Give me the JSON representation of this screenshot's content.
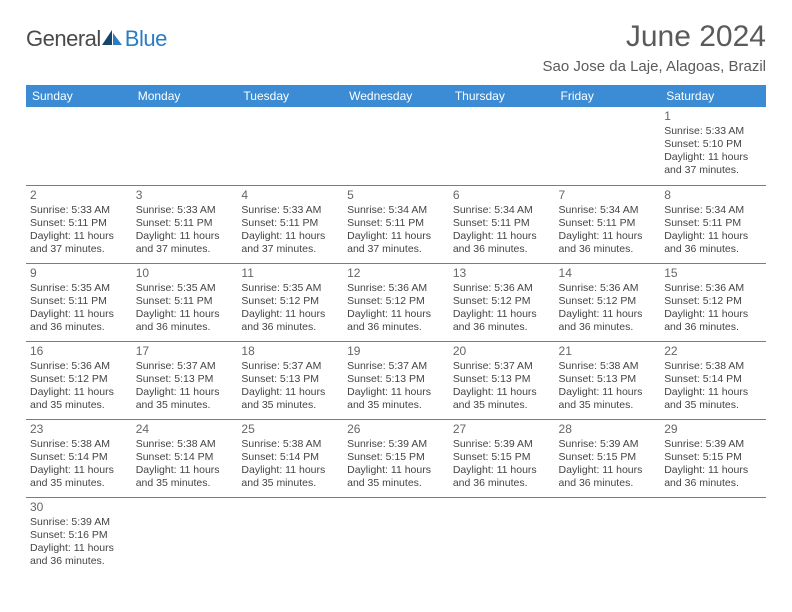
{
  "logo": {
    "part1": "General",
    "part2": "Blue"
  },
  "title": "June 2024",
  "location": "Sao Jose da Laje, Alagoas, Brazil",
  "colors": {
    "header_bg": "#3b8cd4",
    "header_text": "#ffffff",
    "rule": "#3b8cd4",
    "title_text": "#5a5a5a",
    "logo_blue": "#2b7cc4",
    "logo_gray": "#4a4a4a"
  },
  "day_headers": [
    "Sunday",
    "Monday",
    "Tuesday",
    "Wednesday",
    "Thursday",
    "Friday",
    "Saturday"
  ],
  "weeks": [
    [
      null,
      null,
      null,
      null,
      null,
      null,
      {
        "n": "1",
        "sr": "5:33 AM",
        "ss": "5:10 PM",
        "dl": "11 hours and 37 minutes."
      }
    ],
    [
      {
        "n": "2",
        "sr": "5:33 AM",
        "ss": "5:11 PM",
        "dl": "11 hours and 37 minutes."
      },
      {
        "n": "3",
        "sr": "5:33 AM",
        "ss": "5:11 PM",
        "dl": "11 hours and 37 minutes."
      },
      {
        "n": "4",
        "sr": "5:33 AM",
        "ss": "5:11 PM",
        "dl": "11 hours and 37 minutes."
      },
      {
        "n": "5",
        "sr": "5:34 AM",
        "ss": "5:11 PM",
        "dl": "11 hours and 37 minutes."
      },
      {
        "n": "6",
        "sr": "5:34 AM",
        "ss": "5:11 PM",
        "dl": "11 hours and 36 minutes."
      },
      {
        "n": "7",
        "sr": "5:34 AM",
        "ss": "5:11 PM",
        "dl": "11 hours and 36 minutes."
      },
      {
        "n": "8",
        "sr": "5:34 AM",
        "ss": "5:11 PM",
        "dl": "11 hours and 36 minutes."
      }
    ],
    [
      {
        "n": "9",
        "sr": "5:35 AM",
        "ss": "5:11 PM",
        "dl": "11 hours and 36 minutes."
      },
      {
        "n": "10",
        "sr": "5:35 AM",
        "ss": "5:11 PM",
        "dl": "11 hours and 36 minutes."
      },
      {
        "n": "11",
        "sr": "5:35 AM",
        "ss": "5:12 PM",
        "dl": "11 hours and 36 minutes."
      },
      {
        "n": "12",
        "sr": "5:36 AM",
        "ss": "5:12 PM",
        "dl": "11 hours and 36 minutes."
      },
      {
        "n": "13",
        "sr": "5:36 AM",
        "ss": "5:12 PM",
        "dl": "11 hours and 36 minutes."
      },
      {
        "n": "14",
        "sr": "5:36 AM",
        "ss": "5:12 PM",
        "dl": "11 hours and 36 minutes."
      },
      {
        "n": "15",
        "sr": "5:36 AM",
        "ss": "5:12 PM",
        "dl": "11 hours and 36 minutes."
      }
    ],
    [
      {
        "n": "16",
        "sr": "5:36 AM",
        "ss": "5:12 PM",
        "dl": "11 hours and 35 minutes."
      },
      {
        "n": "17",
        "sr": "5:37 AM",
        "ss": "5:13 PM",
        "dl": "11 hours and 35 minutes."
      },
      {
        "n": "18",
        "sr": "5:37 AM",
        "ss": "5:13 PM",
        "dl": "11 hours and 35 minutes."
      },
      {
        "n": "19",
        "sr": "5:37 AM",
        "ss": "5:13 PM",
        "dl": "11 hours and 35 minutes."
      },
      {
        "n": "20",
        "sr": "5:37 AM",
        "ss": "5:13 PM",
        "dl": "11 hours and 35 minutes."
      },
      {
        "n": "21",
        "sr": "5:38 AM",
        "ss": "5:13 PM",
        "dl": "11 hours and 35 minutes."
      },
      {
        "n": "22",
        "sr": "5:38 AM",
        "ss": "5:14 PM",
        "dl": "11 hours and 35 minutes."
      }
    ],
    [
      {
        "n": "23",
        "sr": "5:38 AM",
        "ss": "5:14 PM",
        "dl": "11 hours and 35 minutes."
      },
      {
        "n": "24",
        "sr": "5:38 AM",
        "ss": "5:14 PM",
        "dl": "11 hours and 35 minutes."
      },
      {
        "n": "25",
        "sr": "5:38 AM",
        "ss": "5:14 PM",
        "dl": "11 hours and 35 minutes."
      },
      {
        "n": "26",
        "sr": "5:39 AM",
        "ss": "5:15 PM",
        "dl": "11 hours and 35 minutes."
      },
      {
        "n": "27",
        "sr": "5:39 AM",
        "ss": "5:15 PM",
        "dl": "11 hours and 36 minutes."
      },
      {
        "n": "28",
        "sr": "5:39 AM",
        "ss": "5:15 PM",
        "dl": "11 hours and 36 minutes."
      },
      {
        "n": "29",
        "sr": "5:39 AM",
        "ss": "5:15 PM",
        "dl": "11 hours and 36 minutes."
      }
    ],
    [
      {
        "n": "30",
        "sr": "5:39 AM",
        "ss": "5:16 PM",
        "dl": "11 hours and 36 minutes."
      },
      null,
      null,
      null,
      null,
      null,
      null
    ]
  ],
  "labels": {
    "sunrise": "Sunrise: ",
    "sunset": "Sunset: ",
    "daylight": "Daylight: "
  }
}
